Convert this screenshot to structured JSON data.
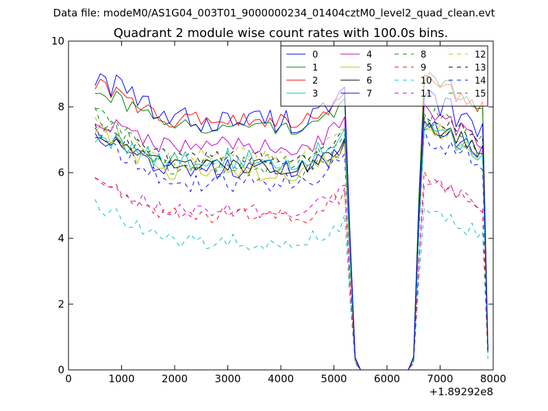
{
  "header": {
    "file_label": "Data file: modeM0/AS1G04_003T01_9000000234_01404cztM0_level2_quad_clean.evt"
  },
  "chart_data": {
    "type": "line",
    "title": "Quadrant 2 module wise count rates with 100.0s bins.",
    "xlabel": "",
    "ylabel": "",
    "x_offset_label": "+1.89292e8",
    "xlim": [
      0,
      8000
    ],
    "ylim": [
      0,
      10
    ],
    "xticks": [
      0,
      1000,
      2000,
      3000,
      4000,
      5000,
      6000,
      7000,
      8000
    ],
    "yticks": [
      0,
      2,
      4,
      6,
      8,
      10
    ],
    "grid": false,
    "legend_position": "top-right",
    "legend_columns": 4,
    "segments": {
      "orbit1": {
        "start": 500,
        "end": 5200,
        "step": 100
      },
      "transition_down": [
        [
          5300,
          0.55
        ],
        [
          5400,
          0.05
        ]
      ],
      "gap": [
        [
          5500,
          0.0
        ],
        [
          6400,
          0.0
        ]
      ],
      "transition_up": [
        [
          6500,
          0.05
        ],
        [
          6600,
          0.65
        ]
      ],
      "orbit2": {
        "start": 6600,
        "end": 7800,
        "step": 100
      },
      "tail": [
        [
          7900,
          0.08
        ]
      ]
    },
    "series": [
      {
        "name": "0",
        "color": "#0000ff",
        "dash": "solid",
        "level1": 7.6,
        "start1": 9.0,
        "level2": 7.4,
        "amp": 0.4
      },
      {
        "name": "1",
        "color": "#008000",
        "dash": "solid",
        "level1": 7.4,
        "start1": 8.6,
        "level2": 8.1,
        "amp": 0.25
      },
      {
        "name": "2",
        "color": "#ff0000",
        "dash": "solid",
        "level1": 7.6,
        "start1": 8.7,
        "level2": 8.0,
        "amp": 0.25
      },
      {
        "name": "3",
        "color": "#00bfbf",
        "dash": "solid",
        "level1": 6.4,
        "start1": 7.1,
        "level2": 6.6,
        "amp": 0.35
      },
      {
        "name": "4",
        "color": "#bf00bf",
        "dash": "solid",
        "level1": 6.8,
        "start1": 7.6,
        "level2": 7.0,
        "amp": 0.3
      },
      {
        "name": "5",
        "color": "#bfbf00",
        "dash": "solid",
        "level1": 6.0,
        "start1": 7.3,
        "level2": 6.6,
        "amp": 0.3
      },
      {
        "name": "6",
        "color": "#000000",
        "dash": "solid",
        "level1": 6.2,
        "start1": 7.1,
        "level2": 6.7,
        "amp": 0.25
      },
      {
        "name": "7",
        "color": "#0000ff",
        "dash": "solid",
        "level1": 6.1,
        "start1": 7.2,
        "level2": 6.6,
        "amp": 0.3
      },
      {
        "name": "8",
        "color": "#008000",
        "dash": "dashed",
        "level1": 6.1,
        "start1": 7.9,
        "level2": 6.6,
        "amp": 0.3
      },
      {
        "name": "9",
        "color": "#ff0000",
        "dash": "dashed",
        "level1": 4.7,
        "start1": 5.8,
        "level2": 5.0,
        "amp": 0.25
      },
      {
        "name": "10",
        "color": "#00bfbf",
        "dash": "dashed",
        "level1": 3.9,
        "start1": 5.1,
        "level2": 4.1,
        "amp": 0.25
      },
      {
        "name": "11",
        "color": "#bf00bf",
        "dash": "dashed",
        "level1": 4.8,
        "start1": 5.7,
        "level2": 5.0,
        "amp": 0.25
      },
      {
        "name": "12",
        "color": "#bfbf00",
        "dash": "dashed",
        "level1": 6.5,
        "start1": 7.5,
        "level2": 6.7,
        "amp": 0.3
      },
      {
        "name": "13",
        "color": "#000000",
        "dash": "dashed",
        "level1": 6.5,
        "start1": 7.3,
        "level2": 7.0,
        "amp": 0.25
      },
      {
        "name": "14",
        "color": "#0000ff",
        "dash": "dashed",
        "level1": 5.7,
        "start1": 7.1,
        "level2": 6.3,
        "amp": 0.3
      },
      {
        "name": "15",
        "color": "#008000",
        "dash": "dashed",
        "level1": 6.3,
        "start1": 7.7,
        "level2": 7.0,
        "amp": 0.3
      }
    ]
  }
}
